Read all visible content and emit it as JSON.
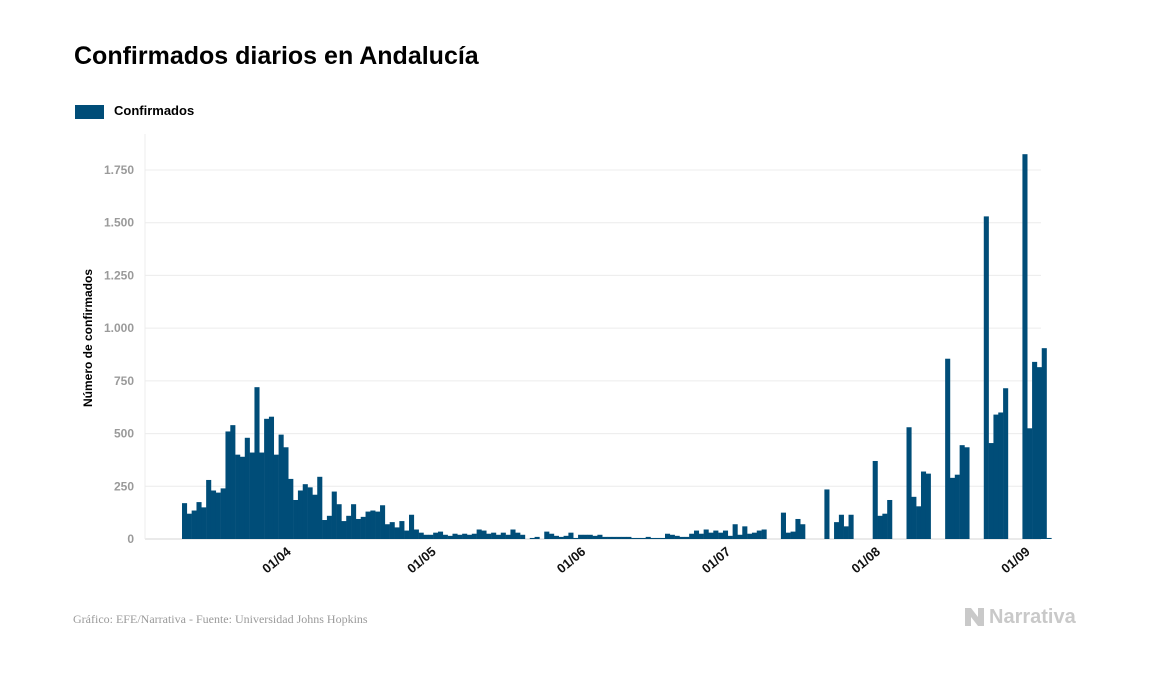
{
  "chart_data": {
    "type": "bar",
    "title": "Confirmados diarios en Andalucía",
    "ylabel": "Número de confirmados",
    "xlabel": "",
    "ylim": [
      0,
      1750
    ],
    "yticks": [
      0,
      250,
      500,
      750,
      1000,
      1250,
      1500,
      1750
    ],
    "ytick_labels": [
      "0",
      "250",
      "500",
      "750",
      "1.000",
      "1.250",
      "1.500",
      "1.750"
    ],
    "x_start": "2020-03-11",
    "xticks": [
      {
        "date": "2020-04-01",
        "label": "01/04"
      },
      {
        "date": "2020-05-01",
        "label": "01/05"
      },
      {
        "date": "2020-06-01",
        "label": "01/06"
      },
      {
        "date": "2020-07-01",
        "label": "01/07"
      },
      {
        "date": "2020-08-01",
        "label": "01/08"
      },
      {
        "date": "2020-09-01",
        "label": "01/09"
      }
    ],
    "grid": true,
    "legend_position": "top-left",
    "series": [
      {
        "name": "Confirmados",
        "color": "#004d78",
        "values": [
          170,
          120,
          135,
          175,
          150,
          280,
          230,
          220,
          240,
          510,
          540,
          400,
          390,
          480,
          410,
          720,
          410,
          570,
          580,
          400,
          495,
          435,
          285,
          185,
          230,
          260,
          245,
          210,
          295,
          90,
          110,
          225,
          165,
          85,
          110,
          165,
          95,
          105,
          130,
          135,
          130,
          160,
          70,
          80,
          55,
          85,
          40,
          115,
          45,
          30,
          20,
          20,
          30,
          35,
          20,
          15,
          25,
          20,
          25,
          20,
          25,
          45,
          40,
          25,
          30,
          20,
          30,
          20,
          45,
          30,
          20,
          0,
          5,
          10,
          0,
          35,
          25,
          15,
          10,
          15,
          30,
          5,
          20,
          20,
          20,
          15,
          20,
          10,
          10,
          10,
          10,
          10,
          10,
          5,
          5,
          5,
          10,
          5,
          5,
          5,
          25,
          20,
          15,
          10,
          10,
          25,
          40,
          25,
          45,
          30,
          40,
          30,
          40,
          15,
          70,
          20,
          60,
          25,
          30,
          40,
          45,
          0,
          0,
          0,
          125,
          30,
          35,
          95,
          70,
          0,
          0,
          0,
          0,
          235,
          0,
          80,
          115,
          60,
          115,
          0,
          0,
          0,
          0,
          370,
          110,
          120,
          185,
          0,
          0,
          0,
          530,
          200,
          155,
          320,
          310,
          0,
          0,
          0,
          855,
          290,
          305,
          445,
          435,
          0,
          0,
          0,
          1530,
          455,
          590,
          600,
          715,
          0,
          0,
          0,
          1825,
          525,
          840,
          815,
          905,
          5
        ]
      }
    ]
  },
  "footer": {
    "credit": "Gráfico: EFE/Narrativa - Fuente: Universidad Johns Hopkins",
    "brand": "Narrativa"
  }
}
